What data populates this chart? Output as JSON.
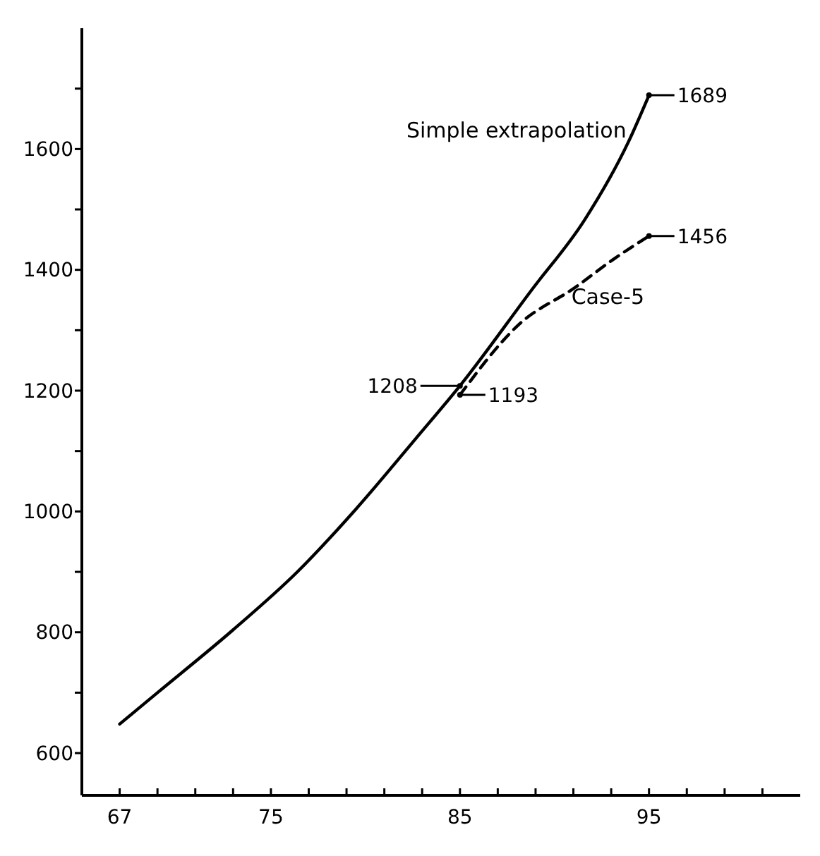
{
  "chart_data": {
    "type": "line",
    "xlim": [
      65,
      103
    ],
    "ylim": [
      530,
      1800
    ],
    "xticks": [
      67,
      {
        "value": 69,
        "label": null
      },
      {
        "value": 71,
        "label": null
      },
      {
        "value": 73,
        "label": null
      },
      75,
      {
        "value": 77,
        "label": null
      },
      {
        "value": 79,
        "label": null
      },
      {
        "value": 81,
        "label": null
      },
      {
        "value": 83,
        "label": null
      },
      85,
      {
        "value": 87,
        "label": null
      },
      {
        "value": 89,
        "label": null
      },
      {
        "value": 91,
        "label": null
      },
      {
        "value": 93,
        "label": null
      },
      95,
      {
        "value": 97,
        "label": null
      },
      {
        "value": 99,
        "label": null
      },
      {
        "value": 101,
        "label": null
      }
    ],
    "yticks": [
      600,
      {
        "value": 700,
        "label": null
      },
      800,
      {
        "value": 900,
        "label": null
      },
      1000,
      {
        "value": 1100,
        "label": null
      },
      1200,
      {
        "value": 1300,
        "label": null
      },
      1400,
      {
        "value": 1500,
        "label": null
      },
      1600,
      {
        "value": 1700,
        "label": null
      }
    ],
    "grid": false,
    "series": [
      {
        "name": "Simple extrapolation",
        "color": "#000000",
        "line_style": "solid",
        "x": [
          67,
          69,
          73,
          76.4,
          79.5,
          82.7,
          85,
          88.8,
          91.6,
          93.9,
          95
        ],
        "values": [
          648,
          700,
          804,
          900,
          1004,
          1122,
          1208,
          1367,
          1483,
          1611,
          1689
        ],
        "value_labels": [
          null,
          null,
          null,
          null,
          null,
          null,
          "1208",
          null,
          null,
          null,
          "1689"
        ]
      },
      {
        "name": "Case-5",
        "color": "#000000",
        "line_style": "dashed",
        "x": [
          85,
          88.1,
          91.1,
          93.1,
          95
        ],
        "values": [
          1193,
          1309,
          1371,
          1417,
          1456
        ],
        "value_labels": [
          "1193",
          null,
          null,
          null,
          "1456"
        ]
      }
    ]
  }
}
